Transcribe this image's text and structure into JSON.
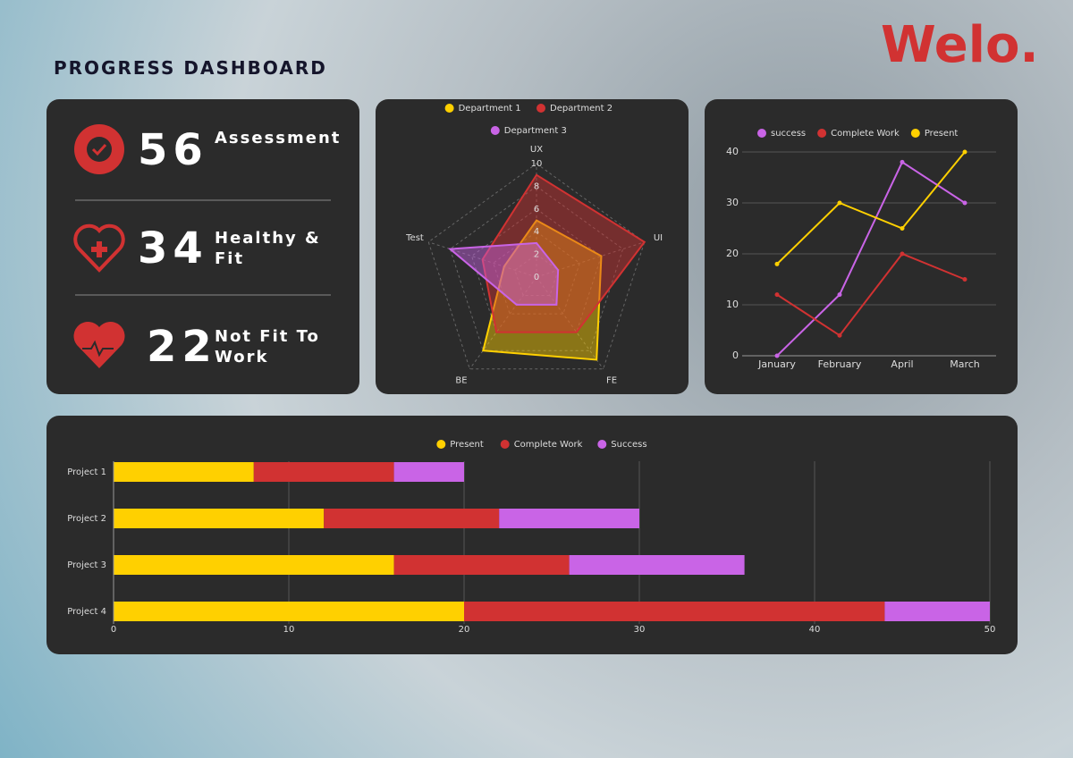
{
  "header": {
    "title": "PROGRESS DASHBOARD",
    "logo": "Welo."
  },
  "stats": [
    {
      "value": "56",
      "label": "Assessment"
    },
    {
      "value": "34",
      "label": "Healthy & Fit"
    },
    {
      "value": "22",
      "label": "Not Fit To Work"
    }
  ],
  "chart_data": [
    {
      "type": "radar",
      "categories": [
        "UX",
        "UI",
        "FE",
        "BE",
        "Test"
      ],
      "rlim": [
        0,
        10
      ],
      "rticks": [
        0,
        2,
        4,
        6,
        8,
        10
      ],
      "series": [
        {
          "name": "Department 1",
          "color": "#ffd000",
          "values": [
            5,
            6,
            9,
            8,
            3
          ]
        },
        {
          "name": "Department 2",
          "color": "#d13232",
          "values": [
            9,
            10,
            6,
            6,
            5
          ]
        },
        {
          "name": "Department 3",
          "color": "#c964e6",
          "values": [
            3,
            2,
            3,
            3,
            8
          ]
        }
      ]
    },
    {
      "type": "line",
      "categories": [
        "January",
        "February",
        "April",
        "March"
      ],
      "ylim": [
        0,
        40
      ],
      "yticks": [
        0,
        10,
        20,
        30,
        40
      ],
      "grid": true,
      "series": [
        {
          "name": "success",
          "color": "#c964e6",
          "values": [
            0,
            12,
            38,
            30
          ]
        },
        {
          "name": "Complete Work",
          "color": "#d13232",
          "values": [
            12,
            4,
            20,
            15
          ]
        },
        {
          "name": "Present",
          "color": "#ffd000",
          "values": [
            18,
            30,
            25,
            40
          ]
        }
      ]
    },
    {
      "type": "hbar_stacked",
      "categories": [
        "Project 1",
        "Project 2",
        "Project 3",
        "Project 4"
      ],
      "xlim": [
        0,
        50
      ],
      "xticks": [
        0,
        10,
        20,
        30,
        40,
        50
      ],
      "grid": true,
      "series": [
        {
          "name": "Present",
          "color": "#ffd000",
          "values": [
            8,
            12,
            16,
            20
          ]
        },
        {
          "name": "Complete Work",
          "color": "#d13232",
          "values": [
            8,
            10,
            10,
            24
          ]
        },
        {
          "name": "Success",
          "color": "#c964e6",
          "values": [
            4,
            8,
            10,
            6
          ]
        }
      ]
    }
  ]
}
